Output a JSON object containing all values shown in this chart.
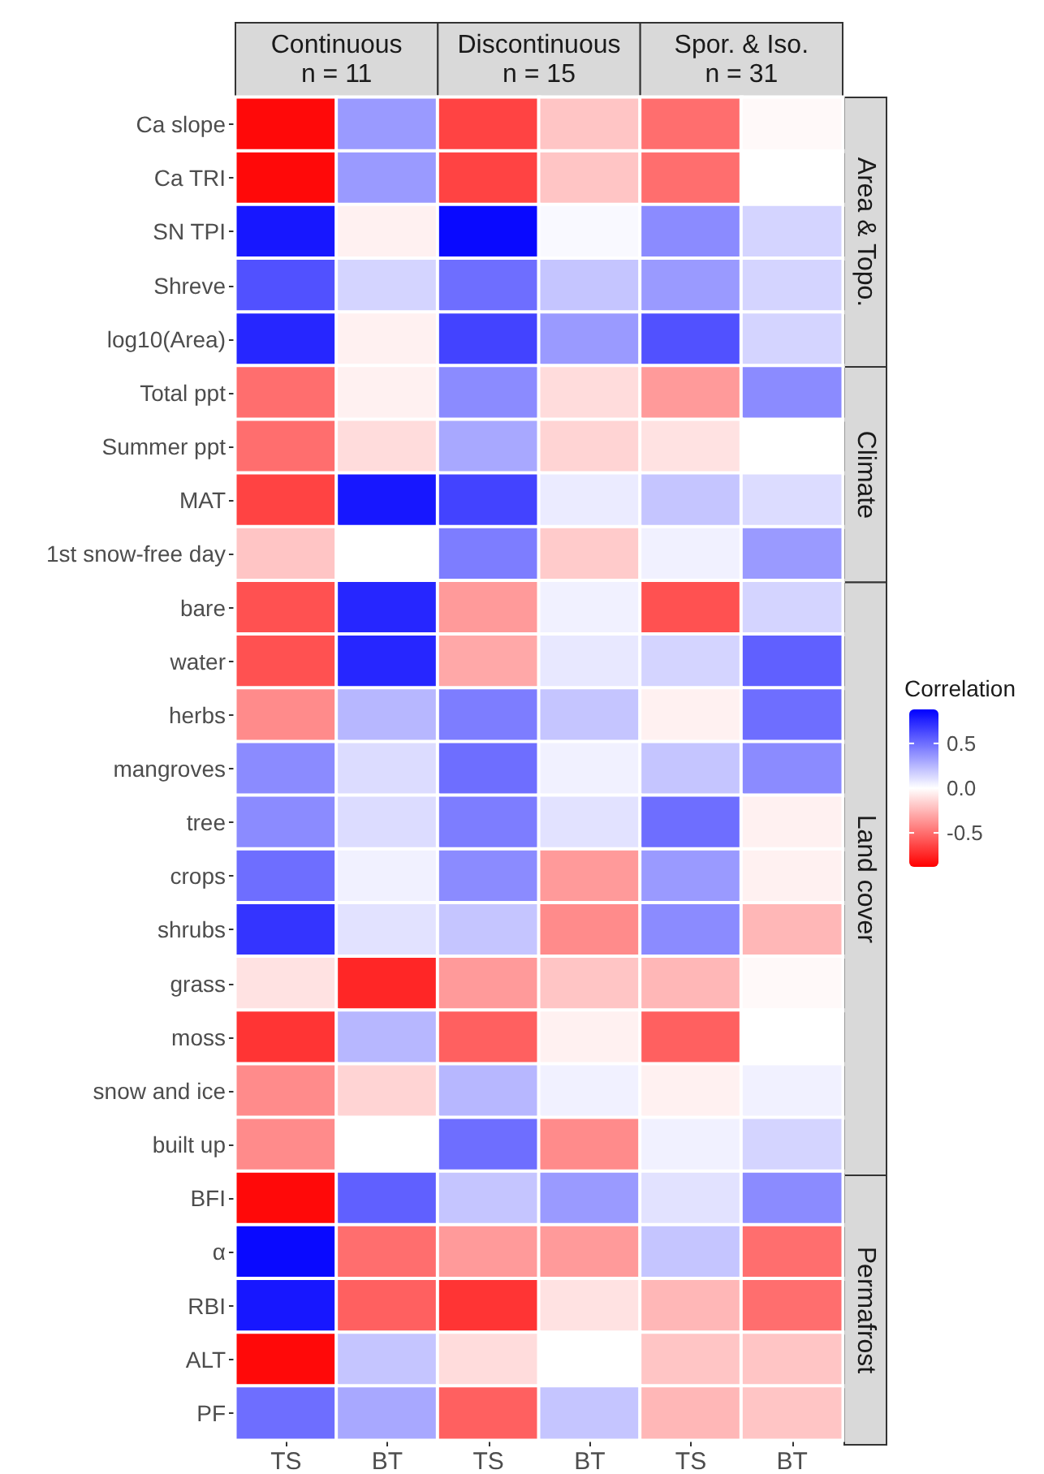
{
  "chart_data": {
    "type": "heatmap",
    "categories": [
      "TS",
      "BT",
      "TS",
      "BT",
      "TS",
      "BT"
    ],
    "y_categories": [
      "Ca slope",
      "Ca TRI",
      "SN TPI",
      "Shreve",
      "log10(Area)",
      "Total ppt",
      "Summer ppt",
      "MAT",
      "1st snow-free day",
      "bare",
      "water",
      "herbs",
      "mangroves",
      "tree",
      "crops",
      "shrubs",
      "grass",
      "moss",
      "snow and ice",
      "built up",
      "BFI",
      "α",
      "RBI",
      "ALT",
      "PF"
    ],
    "cells": [
      [
        -0.85,
        0.35,
        -0.65,
        -0.2,
        -0.5,
        -0.02
      ],
      [
        -0.85,
        0.35,
        -0.65,
        -0.2,
        -0.5,
        0.0
      ],
      [
        0.8,
        -0.05,
        0.85,
        0.02,
        0.4,
        0.15
      ],
      [
        0.6,
        0.15,
        0.5,
        0.2,
        0.35,
        0.15
      ],
      [
        0.75,
        -0.05,
        0.65,
        0.35,
        0.6,
        0.15
      ],
      [
        -0.5,
        -0.05,
        0.4,
        -0.12,
        -0.35,
        0.4
      ],
      [
        -0.5,
        -0.12,
        0.3,
        -0.15,
        -0.1,
        0.0
      ],
      [
        -0.65,
        0.8,
        0.65,
        0.07,
        0.2,
        0.12
      ],
      [
        -0.2,
        0.0,
        0.45,
        -0.18,
        0.05,
        0.35
      ],
      [
        -0.6,
        0.75,
        -0.35,
        0.05,
        -0.6,
        0.15
      ],
      [
        -0.6,
        0.75,
        -0.3,
        0.08,
        0.15,
        0.55
      ],
      [
        -0.4,
        0.25,
        0.45,
        0.2,
        -0.05,
        0.5
      ],
      [
        0.4,
        0.12,
        0.5,
        0.05,
        0.2,
        0.4
      ],
      [
        0.4,
        0.12,
        0.45,
        0.1,
        0.5,
        -0.05
      ],
      [
        0.5,
        0.05,
        0.4,
        -0.35,
        0.35,
        -0.05
      ],
      [
        0.7,
        0.1,
        0.2,
        -0.4,
        0.4,
        -0.25
      ],
      [
        -0.1,
        -0.75,
        -0.35,
        -0.2,
        -0.25,
        -0.02
      ],
      [
        -0.7,
        0.25,
        -0.55,
        -0.05,
        -0.55,
        0.0
      ],
      [
        -0.4,
        -0.15,
        0.25,
        0.05,
        -0.05,
        0.05
      ],
      [
        -0.4,
        0.0,
        0.5,
        -0.4,
        0.05,
        0.15
      ],
      [
        -0.85,
        0.55,
        0.2,
        0.35,
        0.1,
        0.4
      ],
      [
        0.85,
        -0.5,
        -0.35,
        -0.35,
        0.2,
        -0.5
      ],
      [
        0.8,
        -0.55,
        -0.7,
        -0.1,
        -0.25,
        -0.5
      ],
      [
        -0.85,
        0.2,
        -0.12,
        0.0,
        -0.2,
        -0.2
      ],
      [
        0.5,
        0.3,
        -0.55,
        0.2,
        -0.25,
        -0.2
      ]
    ],
    "annotations": [
      "Continuous\nn = 11",
      "Discontinuous\nn = 15",
      "Spor. & Iso.\nn = 31",
      "Area & Topo.",
      "Climate",
      "Land cover",
      "Permafrost"
    ],
    "clabel": "Correlation",
    "clim": [
      -0.88,
      0.88
    ],
    "cticks": [
      {
        "value": 0.5,
        "label": "0.5"
      },
      {
        "value": 0,
        "label": "0.0"
      },
      {
        "value": -0.5,
        "label": "-0.5"
      }
    ]
  }
}
